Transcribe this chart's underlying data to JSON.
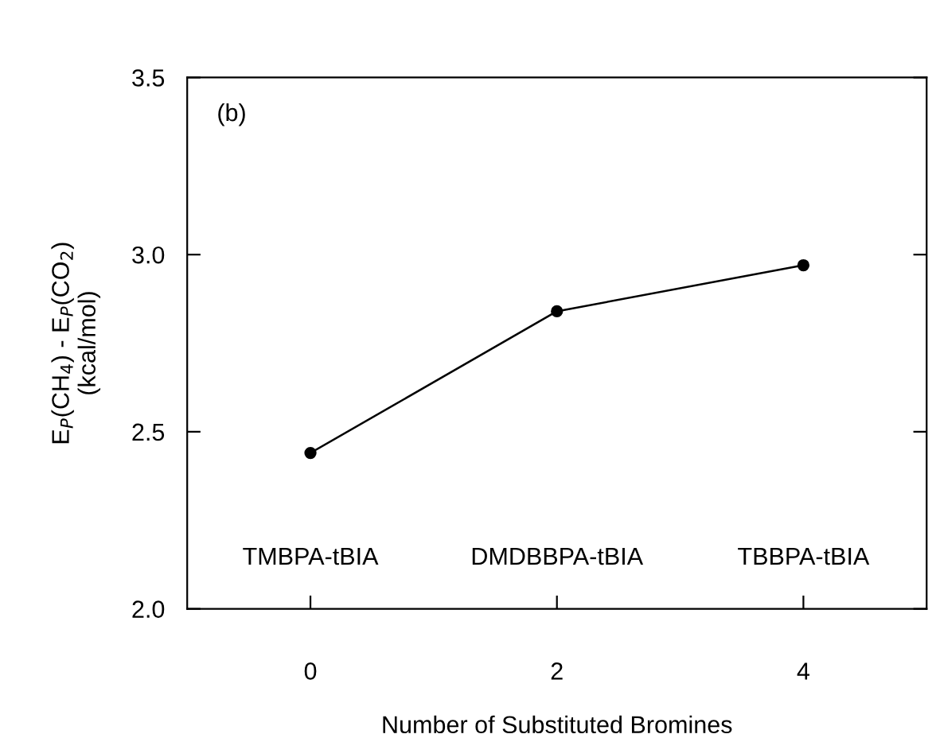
{
  "chart_data": {
    "type": "line",
    "xlabel": "Number of Substituted Bromines",
    "ylabel": "E$_{P}$(CH$_{4}$) - E$_{P}$(CO$_{2}$)\n(kcal/mol)",
    "x": [
      0,
      2,
      4
    ],
    "series": [
      {
        "color": "#000000",
        "values": [
          2.44,
          2.84,
          2.97
        ]
      }
    ],
    "marker": "circle",
    "line_style": "solid",
    "xlim": [
      -1,
      5
    ],
    "xticks": [
      0,
      2,
      4
    ],
    "ylim": [
      2.0,
      3.5
    ],
    "yticks": [
      {
        "value": 2,
        "label": "2.0"
      },
      2.5,
      {
        "value": 3,
        "label": "3.0"
      },
      3.5
    ],
    "grid": false,
    "legend": false,
    "annotations": [
      "(b)",
      "TMBPA-tBIA",
      "DMDBBPA-tBIA",
      "TBBPA-tBIA"
    ]
  }
}
